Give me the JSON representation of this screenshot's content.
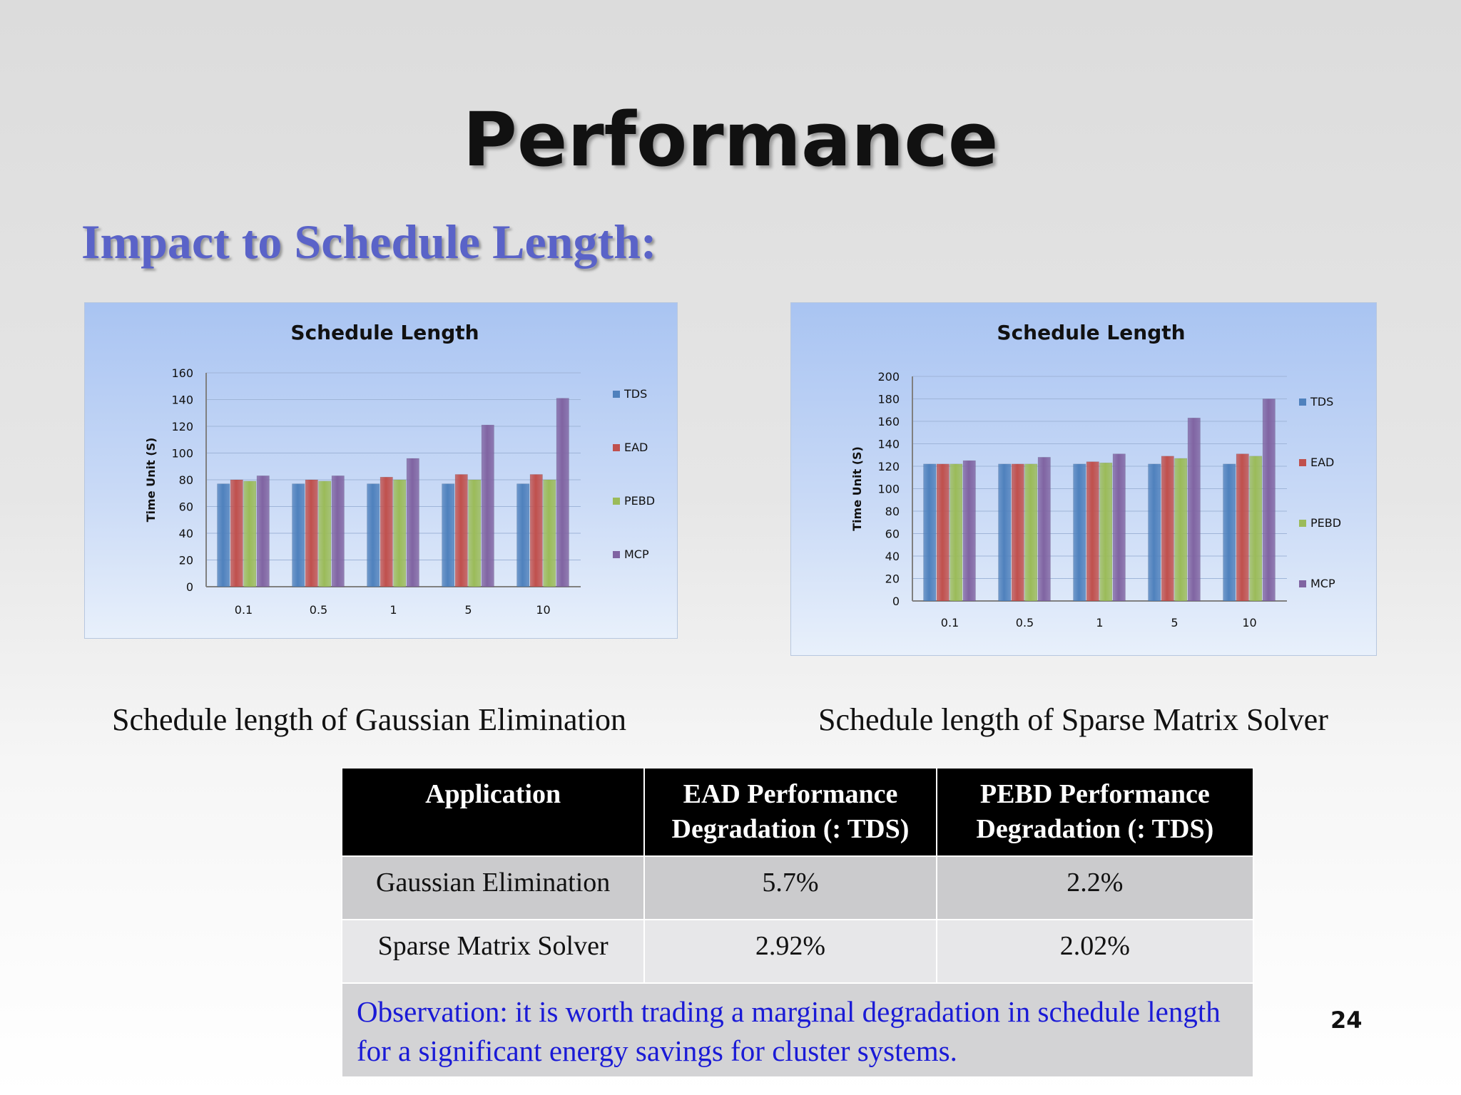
{
  "slide": {
    "title": "Performance",
    "subtitle": "Impact to Schedule Length:",
    "page_number": "24"
  },
  "captions": {
    "left": "Schedule length of Gaussian Elimination",
    "right": "Schedule length of Sparse Matrix Solver"
  },
  "chart_data": [
    {
      "type": "bar",
      "title": "Schedule Length",
      "xlabel": "",
      "ylabel": "Time Unit (S)",
      "categories": [
        "0.1",
        "0.5",
        "1",
        "5",
        "10"
      ],
      "ylim": [
        0,
        160
      ],
      "yticks": [
        0,
        20,
        40,
        60,
        80,
        100,
        120,
        140,
        160
      ],
      "grid": true,
      "legend": "right",
      "series": [
        {
          "name": "TDS",
          "color": "#4f81bd",
          "values": [
            77,
            77,
            77,
            77,
            77
          ]
        },
        {
          "name": "EAD",
          "color": "#c0504d",
          "values": [
            80,
            80,
            82,
            84,
            84
          ]
        },
        {
          "name": "PEBD",
          "color": "#9bbb59",
          "values": [
            79,
            79,
            80,
            80,
            80
          ]
        },
        {
          "name": "MCP",
          "color": "#8064a2",
          "values": [
            83,
            83,
            96,
            121,
            141
          ]
        }
      ]
    },
    {
      "type": "bar",
      "title": "Schedule Length",
      "xlabel": "",
      "ylabel": "Time Unit (S)",
      "categories": [
        "0.1",
        "0.5",
        "1",
        "5",
        "10"
      ],
      "ylim": [
        0,
        200
      ],
      "yticks": [
        0,
        20,
        40,
        60,
        80,
        100,
        120,
        140,
        160,
        180,
        200
      ],
      "grid": true,
      "legend": "right",
      "series": [
        {
          "name": "TDS",
          "color": "#4f81bd",
          "values": [
            122,
            122,
            122,
            122,
            122
          ]
        },
        {
          "name": "EAD",
          "color": "#c0504d",
          "values": [
            122,
            122,
            124,
            129,
            131
          ]
        },
        {
          "name": "PEBD",
          "color": "#9bbb59",
          "values": [
            122,
            122,
            123,
            127,
            129
          ]
        },
        {
          "name": "MCP",
          "color": "#8064a2",
          "values": [
            125,
            128,
            131,
            163,
            180
          ]
        }
      ]
    }
  ],
  "table": {
    "headers": [
      "Application",
      "EAD Performance Degradation (: TDS)",
      "PEBD Performance Degradation (: TDS)"
    ],
    "rows": [
      [
        "Gaussian Elimination",
        "5.7%",
        "2.2%"
      ],
      [
        "Sparse Matrix Solver",
        "2.92%",
        "2.02%"
      ]
    ],
    "observation": "Observation: it is worth trading a marginal degradation in schedule length for a significant energy savings for cluster systems."
  }
}
